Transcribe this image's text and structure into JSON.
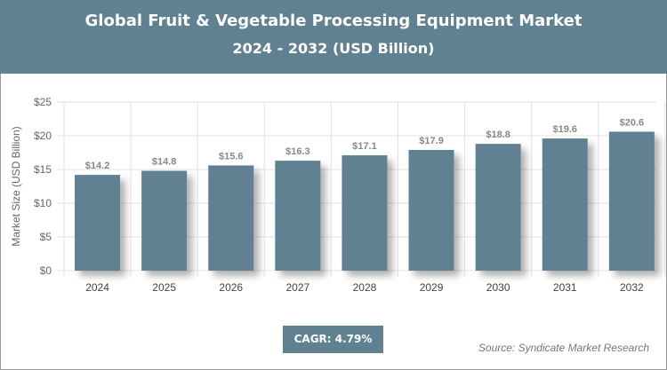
{
  "header": {
    "title": "Global Fruit & Vegetable Processing Equipment Market",
    "subtitle": "2024 - 2032 (USD Billion)"
  },
  "cagr": "CAGR: 4.79%",
  "source": "Source: Syndicate Market Research",
  "colors": {
    "bar": "#5f8191",
    "header": "#5f8191"
  },
  "chart_data": {
    "type": "bar",
    "categories": [
      "2024",
      "2025",
      "2026",
      "2027",
      "2028",
      "2029",
      "2030",
      "2031",
      "2032"
    ],
    "values": [
      14.2,
      14.8,
      15.6,
      16.3,
      17.1,
      17.9,
      18.8,
      19.6,
      20.6
    ],
    "data_labels": [
      "$14.2",
      "$14.8",
      "$15.6",
      "$16.3",
      "$17.1",
      "$17.9",
      "$18.8",
      "$19.6",
      "$20.6"
    ],
    "ylabel": "Market Size (USD Billion)",
    "ylim": [
      0,
      25
    ],
    "yticks": [
      0,
      5,
      10,
      15,
      20,
      25
    ],
    "ytick_labels": [
      "$0",
      "$5",
      "$10",
      "$15",
      "$20",
      "$25"
    ],
    "grid": true
  }
}
